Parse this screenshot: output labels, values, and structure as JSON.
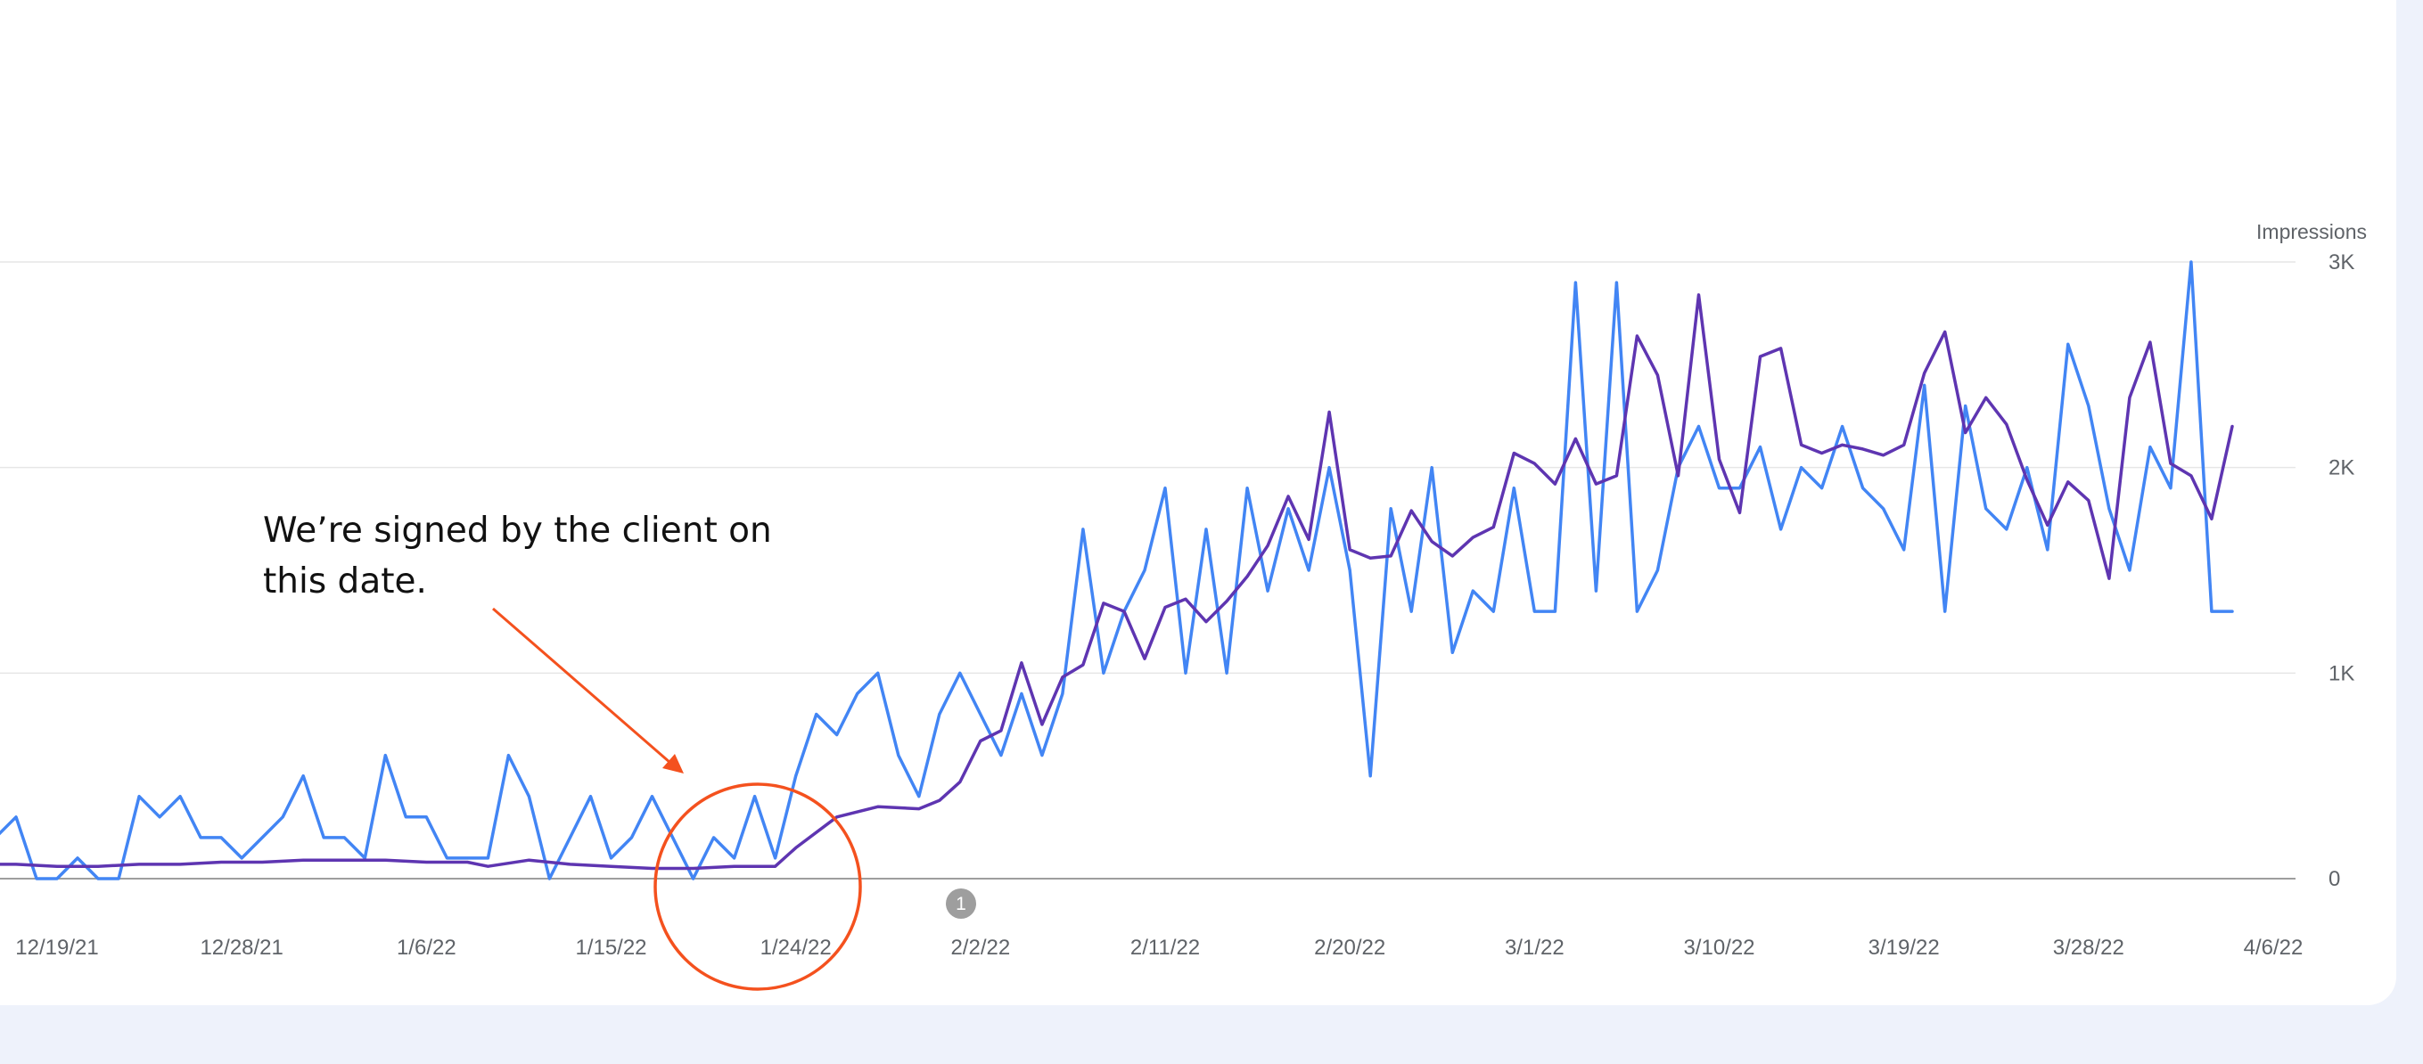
{
  "chart_data": {
    "type": "line",
    "ylabel": "Impressions",
    "ylim": [
      0,
      3000
    ],
    "yticks": [
      "0",
      "1K",
      "2K",
      "3K"
    ],
    "ytick_values": [
      0,
      1000,
      2000,
      3000
    ],
    "xlim": [
      "2021-12-13",
      "2022-04-06"
    ],
    "xticks": [
      "12/19/21",
      "12/28/21",
      "1/6/22",
      "1/15/22",
      "1/24/22",
      "2/2/22",
      "2/11/22",
      "2/20/22",
      "3/1/22",
      "3/10/22",
      "3/19/22",
      "3/28/22",
      "4/6/22"
    ],
    "xtick_dates": [
      "2021-12-19",
      "2021-12-28",
      "2022-01-06",
      "2022-01-15",
      "2022-01-24",
      "2022-02-02",
      "2022-02-11",
      "2022-02-20",
      "2022-03-01",
      "2022-03-10",
      "2022-03-19",
      "2022-03-28",
      "2022-04-06"
    ],
    "grid": true,
    "series": [
      {
        "color": "#4285f4",
        "points": [
          [
            "2021-12-13",
            350
          ],
          [
            "2021-12-14",
            0
          ],
          [
            "2021-12-15",
            300
          ],
          [
            "2021-12-16",
            200
          ],
          [
            "2021-12-17",
            300
          ],
          [
            "2021-12-18",
            0
          ],
          [
            "2021-12-19",
            0
          ],
          [
            "2021-12-20",
            100
          ],
          [
            "2021-12-21",
            0
          ],
          [
            "2021-12-22",
            0
          ],
          [
            "2021-12-23",
            400
          ],
          [
            "2021-12-24",
            300
          ],
          [
            "2021-12-25",
            400
          ],
          [
            "2021-12-26",
            200
          ],
          [
            "2021-12-27",
            200
          ],
          [
            "2021-12-28",
            100
          ],
          [
            "2021-12-29",
            200
          ],
          [
            "2021-12-30",
            300
          ],
          [
            "2021-12-31",
            500
          ],
          [
            "2022-01-01",
            200
          ],
          [
            "2022-01-02",
            200
          ],
          [
            "2022-01-03",
            100
          ],
          [
            "2022-01-04",
            600
          ],
          [
            "2022-01-05",
            300
          ],
          [
            "2022-01-06",
            300
          ],
          [
            "2022-01-07",
            100
          ],
          [
            "2022-01-08",
            100
          ],
          [
            "2022-01-09",
            100
          ],
          [
            "2022-01-10",
            600
          ],
          [
            "2022-01-11",
            400
          ],
          [
            "2022-01-12",
            0
          ],
          [
            "2022-01-13",
            200
          ],
          [
            "2022-01-14",
            400
          ],
          [
            "2022-01-15",
            100
          ],
          [
            "2022-01-16",
            200
          ],
          [
            "2022-01-17",
            400
          ],
          [
            "2022-01-18",
            200
          ],
          [
            "2022-01-19",
            0
          ],
          [
            "2022-01-20",
            200
          ],
          [
            "2022-01-21",
            100
          ],
          [
            "2022-01-22",
            400
          ],
          [
            "2022-01-23",
            100
          ],
          [
            "2022-01-24",
            500
          ],
          [
            "2022-01-25",
            800
          ],
          [
            "2022-01-26",
            700
          ],
          [
            "2022-01-27",
            900
          ],
          [
            "2022-01-28",
            1000
          ],
          [
            "2022-01-29",
            600
          ],
          [
            "2022-01-30",
            400
          ],
          [
            "2022-01-31",
            800
          ],
          [
            "2022-02-01",
            1000
          ],
          [
            "2022-02-02",
            800
          ],
          [
            "2022-02-03",
            600
          ],
          [
            "2022-02-04",
            900
          ],
          [
            "2022-02-05",
            600
          ],
          [
            "2022-02-06",
            900
          ],
          [
            "2022-02-07",
            1700
          ],
          [
            "2022-02-08",
            1000
          ],
          [
            "2022-02-09",
            1300
          ],
          [
            "2022-02-10",
            1500
          ],
          [
            "2022-02-11",
            1900
          ],
          [
            "2022-02-12",
            1000
          ],
          [
            "2022-02-13",
            1700
          ],
          [
            "2022-02-14",
            1000
          ],
          [
            "2022-02-15",
            1900
          ],
          [
            "2022-02-16",
            1400
          ],
          [
            "2022-02-17",
            1800
          ],
          [
            "2022-02-18",
            1500
          ],
          [
            "2022-02-19",
            2000
          ],
          [
            "2022-02-20",
            1500
          ],
          [
            "2022-02-21",
            500
          ],
          [
            "2022-02-22",
            1800
          ],
          [
            "2022-02-23",
            1300
          ],
          [
            "2022-02-24",
            2000
          ],
          [
            "2022-02-25",
            1100
          ],
          [
            "2022-02-26",
            1400
          ],
          [
            "2022-02-27",
            1300
          ],
          [
            "2022-02-28",
            1900
          ],
          [
            "2022-03-01",
            1300
          ],
          [
            "2022-03-02",
            1300
          ],
          [
            "2022-03-03",
            2900
          ],
          [
            "2022-03-04",
            1400
          ],
          [
            "2022-03-05",
            2900
          ],
          [
            "2022-03-06",
            1300
          ],
          [
            "2022-03-07",
            1500
          ],
          [
            "2022-03-08",
            2000
          ],
          [
            "2022-03-09",
            2200
          ],
          [
            "2022-03-10",
            1900
          ],
          [
            "2022-03-11",
            1900
          ],
          [
            "2022-03-12",
            2100
          ],
          [
            "2022-03-13",
            1700
          ],
          [
            "2022-03-14",
            2000
          ],
          [
            "2022-03-15",
            1900
          ],
          [
            "2022-03-16",
            2200
          ],
          [
            "2022-03-17",
            1900
          ],
          [
            "2022-03-18",
            1800
          ],
          [
            "2022-03-19",
            1600
          ],
          [
            "2022-03-20",
            2400
          ],
          [
            "2022-03-21",
            1300
          ],
          [
            "2022-03-22",
            2300
          ],
          [
            "2022-03-23",
            1800
          ],
          [
            "2022-03-24",
            1700
          ],
          [
            "2022-03-25",
            2000
          ],
          [
            "2022-03-26",
            1600
          ],
          [
            "2022-03-27",
            2600
          ],
          [
            "2022-03-28",
            2300
          ],
          [
            "2022-03-29",
            1800
          ],
          [
            "2022-03-30",
            1500
          ],
          [
            "2022-03-31",
            2100
          ],
          [
            "2022-04-01",
            1900
          ],
          [
            "2022-04-02",
            3000
          ],
          [
            "2022-04-03",
            1300
          ],
          [
            "2022-04-04",
            1300
          ]
        ]
      },
      {
        "color": "#5e35b1",
        "points": [
          [
            "2021-12-13",
            60
          ],
          [
            "2021-12-15",
            70
          ],
          [
            "2021-12-17",
            70
          ],
          [
            "2021-12-19",
            60
          ],
          [
            "2021-12-21",
            60
          ],
          [
            "2021-12-23",
            70
          ],
          [
            "2021-12-25",
            70
          ],
          [
            "2021-12-27",
            80
          ],
          [
            "2021-12-29",
            80
          ],
          [
            "2021-12-31",
            90
          ],
          [
            "2022-01-02",
            90
          ],
          [
            "2022-01-04",
            90
          ],
          [
            "2022-01-06",
            80
          ],
          [
            "2022-01-08",
            80
          ],
          [
            "2022-01-09",
            60
          ],
          [
            "2022-01-11",
            90
          ],
          [
            "2022-01-13",
            70
          ],
          [
            "2022-01-15",
            60
          ],
          [
            "2022-01-17",
            50
          ],
          [
            "2022-01-19",
            50
          ],
          [
            "2022-01-21",
            60
          ],
          [
            "2022-01-23",
            60
          ],
          [
            "2022-01-24",
            150
          ],
          [
            "2022-01-26",
            300
          ],
          [
            "2022-01-28",
            350
          ],
          [
            "2022-01-30",
            340
          ],
          [
            "2022-01-31",
            380
          ],
          [
            "2022-02-01",
            470
          ],
          [
            "2022-02-02",
            670
          ],
          [
            "2022-02-03",
            720
          ],
          [
            "2022-02-04",
            1050
          ],
          [
            "2022-02-05",
            750
          ],
          [
            "2022-02-06",
            980
          ],
          [
            "2022-02-07",
            1040
          ],
          [
            "2022-02-08",
            1340
          ],
          [
            "2022-02-09",
            1300
          ],
          [
            "2022-02-10",
            1070
          ],
          [
            "2022-02-11",
            1320
          ],
          [
            "2022-02-12",
            1360
          ],
          [
            "2022-02-13",
            1250
          ],
          [
            "2022-02-14",
            1350
          ],
          [
            "2022-02-15",
            1470
          ],
          [
            "2022-02-16",
            1620
          ],
          [
            "2022-02-17",
            1860
          ],
          [
            "2022-02-18",
            1650
          ],
          [
            "2022-02-19",
            2270
          ],
          [
            "2022-02-20",
            1600
          ],
          [
            "2022-02-21",
            1560
          ],
          [
            "2022-02-22",
            1570
          ],
          [
            "2022-02-23",
            1790
          ],
          [
            "2022-02-24",
            1640
          ],
          [
            "2022-02-25",
            1570
          ],
          [
            "2022-02-26",
            1660
          ],
          [
            "2022-02-27",
            1710
          ],
          [
            "2022-02-28",
            2070
          ],
          [
            "2022-03-01",
            2020
          ],
          [
            "2022-03-02",
            1920
          ],
          [
            "2022-03-03",
            2140
          ],
          [
            "2022-03-04",
            1920
          ],
          [
            "2022-03-05",
            1960
          ],
          [
            "2022-03-06",
            2640
          ],
          [
            "2022-03-07",
            2450
          ],
          [
            "2022-03-08",
            1960
          ],
          [
            "2022-03-09",
            2840
          ],
          [
            "2022-03-10",
            2040
          ],
          [
            "2022-03-11",
            1780
          ],
          [
            "2022-03-12",
            2540
          ],
          [
            "2022-03-13",
            2580
          ],
          [
            "2022-03-14",
            2110
          ],
          [
            "2022-03-15",
            2070
          ],
          [
            "2022-03-16",
            2110
          ],
          [
            "2022-03-17",
            2090
          ],
          [
            "2022-03-18",
            2060
          ],
          [
            "2022-03-19",
            2110
          ],
          [
            "2022-03-20",
            2460
          ],
          [
            "2022-03-21",
            2660
          ],
          [
            "2022-03-22",
            2170
          ],
          [
            "2022-03-23",
            2340
          ],
          [
            "2022-03-24",
            2210
          ],
          [
            "2022-03-25",
            1940
          ],
          [
            "2022-03-26",
            1720
          ],
          [
            "2022-03-27",
            1930
          ],
          [
            "2022-03-28",
            1840
          ],
          [
            "2022-03-29",
            1460
          ],
          [
            "2022-03-30",
            2340
          ],
          [
            "2022-03-31",
            2610
          ],
          [
            "2022-04-01",
            2020
          ],
          [
            "2022-04-02",
            1960
          ],
          [
            "2022-04-03",
            1750
          ],
          [
            "2022-04-04",
            2200
          ]
        ]
      }
    ],
    "annotations": [
      {
        "text_lines": [
          "We’re signed by the client on",
          "this date."
        ],
        "color": "#111111",
        "points_to": "2022-01-23"
      },
      {
        "shape": "circle",
        "color": "#f4511e",
        "around": "2022-01-23"
      },
      {
        "marker": "1",
        "date": "2022-01-31",
        "color": "#9e9e9e"
      }
    ]
  }
}
